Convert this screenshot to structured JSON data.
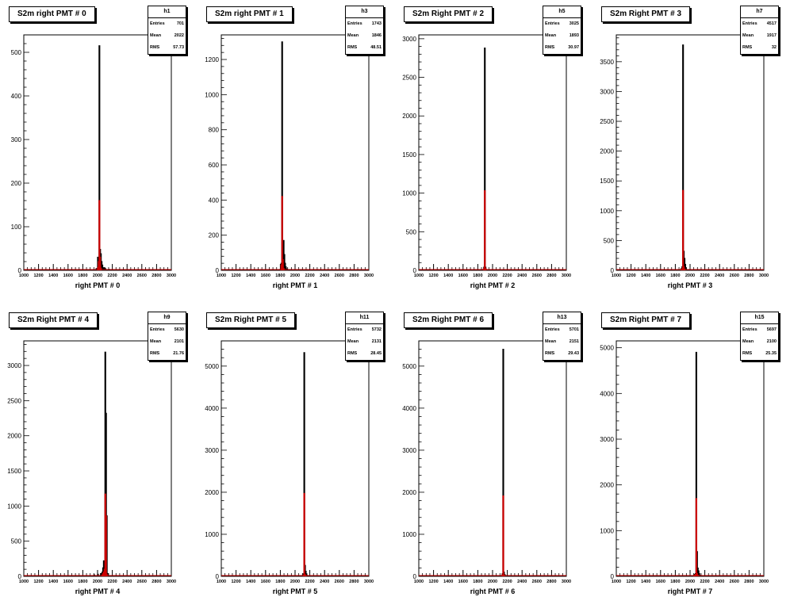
{
  "colors": {
    "outline": "#000000",
    "highlight": "#cc0000"
  },
  "chart_data": [
    {
      "type": "bar",
      "hist_name": "h1",
      "title": "S2m right PMT # 0",
      "xlabel": "right PMT # 0",
      "stats": {
        "entries_label": "Entries",
        "entries": "701",
        "mean_label": "Mean",
        "mean": "2022",
        "rms_label": "RMS",
        "rms": "57.73"
      },
      "xlim": [
        1000,
        3000
      ],
      "ylim": [
        0,
        540
      ],
      "x_ticks": [
        "1000",
        "1200",
        "1400",
        "1600",
        "1800",
        "2000",
        "2200",
        "2400",
        "2600",
        "2800",
        "3000"
      ],
      "y_ticks": [
        0,
        100,
        200,
        300,
        400,
        500
      ],
      "series": [
        {
          "color": "#000000",
          "x": [
            1980,
            2000,
            2015,
            2020,
            2030,
            2040,
            2050,
            2060,
            2080,
            2100,
            2150
          ],
          "values": [
            4,
            30,
            10,
            515,
            48,
            38,
            20,
            12,
            6,
            4,
            2
          ]
        },
        {
          "color": "#cc0000",
          "x": [
            2000,
            2010,
            2020,
            2030,
            2040
          ],
          "values": [
            6,
            20,
            160,
            30,
            5
          ]
        }
      ]
    },
    {
      "type": "bar",
      "hist_name": "h3",
      "title": "S2m right PMT # 1",
      "xlabel": "right PMT # 1",
      "stats": {
        "entries_label": "Entries",
        "entries": "1743",
        "mean_label": "Mean",
        "mean": "1846",
        "rms_label": "RMS",
        "rms": "48.51"
      },
      "xlim": [
        1000,
        3000
      ],
      "ylim": [
        0,
        1340
      ],
      "x_ticks": [
        "1000",
        "1200",
        "1400",
        "1600",
        "1800",
        "2000",
        "2200",
        "2400",
        "2600",
        "2800",
        "3000"
      ],
      "y_ticks": [
        0,
        200,
        400,
        600,
        800,
        1000,
        1200
      ],
      "series": [
        {
          "color": "#000000",
          "x": [
            1800,
            1810,
            1820,
            1830,
            1840,
            1850,
            1860,
            1870,
            1880,
            1900
          ],
          "values": [
            6,
            40,
            1300,
            20,
            170,
            90,
            40,
            20,
            8,
            4
          ]
        },
        {
          "color": "#cc0000",
          "x": [
            1810,
            1820,
            1830,
            1840
          ],
          "values": [
            30,
            420,
            60,
            10
          ]
        }
      ]
    },
    {
      "type": "bar",
      "hist_name": "h5",
      "title": "S2m Right PMT # 2",
      "xlabel": "right PMT # 2",
      "stats": {
        "entries_label": "Entries",
        "entries": "3025",
        "mean_label": "Mean",
        "mean": "1893",
        "rms_label": "RMS",
        "rms": "30.97"
      },
      "xlim": [
        1000,
        3000
      ],
      "ylim": [
        0,
        3050
      ],
      "x_ticks": [
        "1000",
        "1200",
        "1400",
        "1600",
        "1800",
        "2000",
        "2200",
        "2400",
        "2600",
        "2800",
        "3000"
      ],
      "y_ticks": [
        0,
        500,
        1000,
        1500,
        2000,
        2500,
        3000
      ],
      "series": [
        {
          "color": "#000000",
          "x": [
            1870,
            1880,
            1890,
            1900,
            1910
          ],
          "values": [
            10,
            40,
            2880,
            40,
            10
          ]
        },
        {
          "color": "#cc0000",
          "x": [
            1880,
            1890,
            1900
          ],
          "values": [
            20,
            1030,
            20
          ]
        }
      ]
    },
    {
      "type": "bar",
      "hist_name": "h7",
      "title": "S2m Right PMT # 3",
      "xlabel": "right PMT # 3",
      "stats": {
        "entries_label": "Entries",
        "entries": "4517",
        "mean_label": "Mean",
        "mean": "1917",
        "rms_label": "RMS",
        "rms": "32"
      },
      "xlim": [
        1000,
        3000
      ],
      "ylim": [
        0,
        3950
      ],
      "x_ticks": [
        "1000",
        "1200",
        "1400",
        "1600",
        "1800",
        "2000",
        "2200",
        "2400",
        "2600",
        "2800",
        "3000"
      ],
      "y_ticks": [
        0,
        500,
        1000,
        1500,
        2000,
        2500,
        3000,
        3500
      ],
      "series": [
        {
          "color": "#000000",
          "x": [
            1870,
            1880,
            1890,
            1900,
            1910,
            1920,
            1930,
            1940,
            1960
          ],
          "values": [
            10,
            30,
            60,
            3780,
            320,
            200,
            100,
            40,
            10
          ]
        },
        {
          "color": "#cc0000",
          "x": [
            1880,
            1890,
            1900,
            1910,
            1920
          ],
          "values": [
            10,
            30,
            1340,
            60,
            20
          ]
        }
      ]
    },
    {
      "type": "bar",
      "hist_name": "h9",
      "title": "S2m Right PMT # 4",
      "xlabel": "right PMT # 4",
      "stats": {
        "entries_label": "Entries",
        "entries": "5630",
        "mean_label": "Mean",
        "mean": "2101",
        "rms_label": "RMS",
        "rms": "21.76"
      },
      "xlim": [
        1000,
        3000
      ],
      "ylim": [
        0,
        3350
      ],
      "x_ticks": [
        "1000",
        "1200",
        "1400",
        "1600",
        "1800",
        "2000",
        "2200",
        "2400",
        "2600",
        "2800",
        "3000"
      ],
      "y_ticks": [
        0,
        500,
        1000,
        1500,
        2000,
        2500,
        3000
      ],
      "series": [
        {
          "color": "#000000",
          "x": [
            1900,
            1950,
            2000,
            2040,
            2060,
            2070,
            2080,
            2090,
            2100,
            2110,
            2120,
            2130,
            2160
          ],
          "values": [
            10,
            20,
            30,
            40,
            60,
            120,
            220,
            200,
            3190,
            2320,
            860,
            40,
            10
          ]
        },
        {
          "color": "#cc0000",
          "x": [
            2060,
            2070,
            2080,
            2090,
            2100,
            2110,
            2120
          ],
          "values": [
            20,
            40,
            60,
            100,
            1170,
            860,
            30
          ]
        }
      ]
    },
    {
      "type": "bar",
      "hist_name": "h11",
      "title": "S2m Right PMT # 5",
      "xlabel": "right PMT # 5",
      "stats": {
        "entries_label": "Entries",
        "entries": "5732",
        "mean_label": "Mean",
        "mean": "2131",
        "rms_label": "RMS",
        "rms": "28.45"
      },
      "xlim": [
        1000,
        3000
      ],
      "ylim": [
        0,
        5600
      ],
      "x_ticks": [
        "1000",
        "1200",
        "1400",
        "1600",
        "1800",
        "2000",
        "2200",
        "2400",
        "2600",
        "2800",
        "3000"
      ],
      "y_ticks": [
        0,
        1000,
        2000,
        3000,
        4000,
        5000
      ],
      "series": [
        {
          "color": "#000000",
          "x": [
            2100,
            2110,
            2120,
            2130,
            2140,
            2150,
            2160,
            2180
          ],
          "values": [
            20,
            60,
            5320,
            260,
            120,
            60,
            20,
            10
          ]
        },
        {
          "color": "#cc0000",
          "x": [
            2110,
            2120,
            2130,
            2140
          ],
          "values": [
            20,
            1970,
            40,
            10
          ]
        }
      ]
    },
    {
      "type": "bar",
      "hist_name": "h13",
      "title": "S2m Right PMT # 6",
      "xlabel": "right PMT # 6",
      "stats": {
        "entries_label": "Entries",
        "entries": "5701",
        "mean_label": "Mean",
        "mean": "2151",
        "rms_label": "RMS",
        "rms": "29.43"
      },
      "xlim": [
        1000,
        3000
      ],
      "ylim": [
        0,
        5600
      ],
      "x_ticks": [
        "1000",
        "1200",
        "1400",
        "1600",
        "1800",
        "2000",
        "2200",
        "2400",
        "2600",
        "2800",
        "3000"
      ],
      "y_ticks": [
        0,
        1000,
        2000,
        3000,
        4000,
        5000
      ],
      "series": [
        {
          "color": "#000000",
          "x": [
            2120,
            2130,
            2140,
            2150,
            2160,
            2170,
            2190
          ],
          "values": [
            20,
            60,
            5400,
            100,
            40,
            20,
            10
          ]
        },
        {
          "color": "#cc0000",
          "x": [
            2130,
            2140,
            2150
          ],
          "values": [
            30,
            1910,
            30
          ]
        }
      ]
    },
    {
      "type": "bar",
      "hist_name": "h15",
      "title": "S2m Right PMT # 7",
      "xlabel": "right PMT # 7",
      "stats": {
        "entries_label": "Entries",
        "entries": "5697",
        "mean_label": "Mean",
        "mean": "2100",
        "rms_label": "RMS",
        "rms": "25.35"
      },
      "xlim": [
        1000,
        3000
      ],
      "ylim": [
        0,
        5150
      ],
      "x_ticks": [
        "1000",
        "1200",
        "1400",
        "1600",
        "1800",
        "2000",
        "2200",
        "2400",
        "2600",
        "2800",
        "3000"
      ],
      "y_ticks": [
        0,
        1000,
        2000,
        3000,
        4000,
        5000
      ],
      "series": [
        {
          "color": "#000000",
          "x": [
            1950,
            2000,
            2050,
            2060,
            2070,
            2080,
            2090,
            2100,
            2110,
            2120,
            2130,
            2150
          ],
          "values": [
            10,
            10,
            20,
            40,
            60,
            4900,
            540,
            180,
            120,
            60,
            20,
            10
          ]
        },
        {
          "color": "#cc0000",
          "x": [
            2050,
            2060,
            2070,
            2080,
            2090,
            2100
          ],
          "values": [
            10,
            20,
            40,
            1700,
            60,
            20
          ]
        }
      ]
    }
  ]
}
